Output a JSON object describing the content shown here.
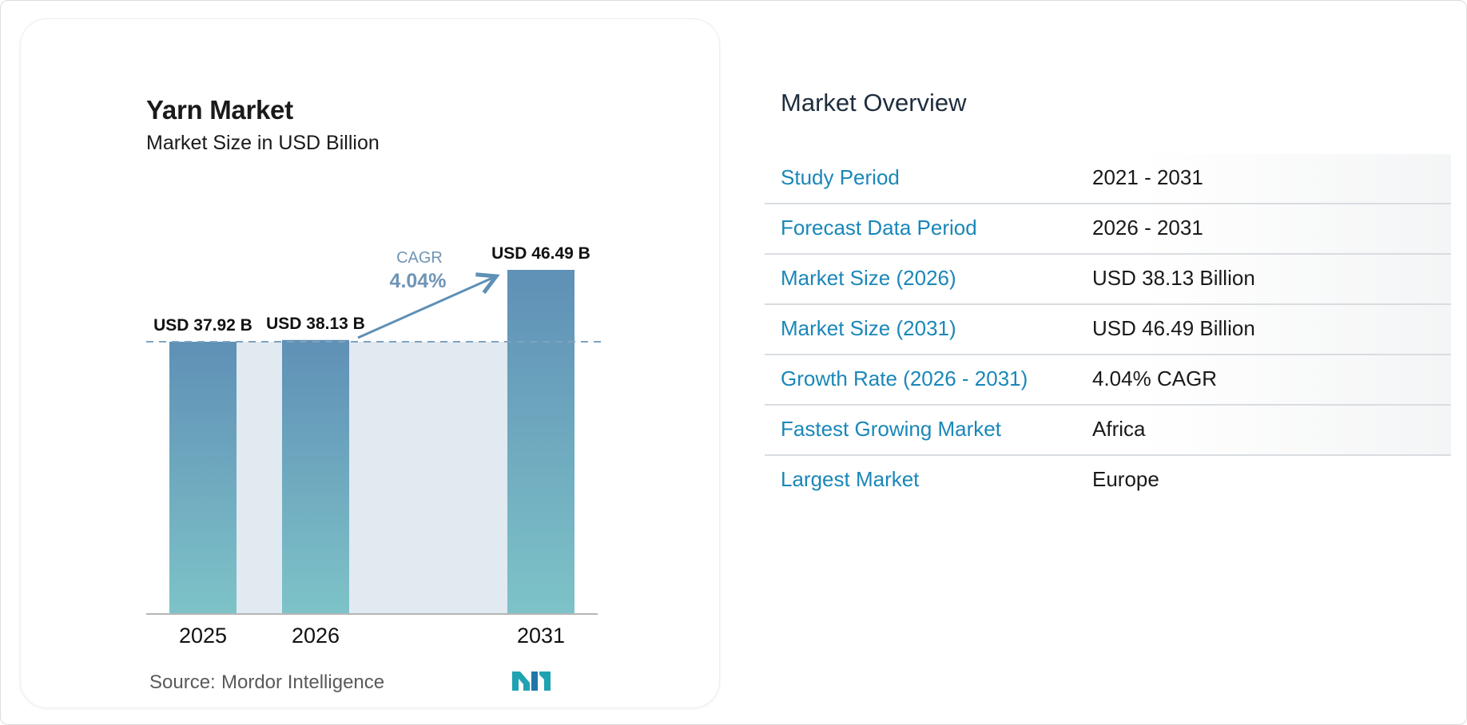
{
  "chart_data": {
    "type": "bar",
    "title": "Yarn Market",
    "subtitle": "Market Size in USD Billion",
    "categories": [
      "2025",
      "2026",
      "2031"
    ],
    "values": [
      37.92,
      38.13,
      46.49
    ],
    "value_labels": [
      "USD 37.92 B",
      "USD 38.13 B",
      "USD 46.49 B"
    ],
    "cagr_label": "CAGR",
    "cagr_value": "4.04%",
    "grid": false,
    "legend": "none",
    "colors": {
      "bar_top": "#5f90b6",
      "bar_bottom": "#7ec3c8",
      "band": "#e1e9f1",
      "arrow": "#5f90b6"
    }
  },
  "source": {
    "label": "Source:",
    "name": "Mordor Intelligence"
  },
  "overview": {
    "title": "Market Overview",
    "rows": [
      {
        "label": "Study Period",
        "value": "2021 - 2031"
      },
      {
        "label": "Forecast Data Period",
        "value": "2026 - 2031"
      },
      {
        "label": "Market Size (2026)",
        "value": "USD 38.13 Billion"
      },
      {
        "label": "Market Size (2031)",
        "value": "USD 46.49 Billion"
      },
      {
        "label": "Growth Rate (2026 - 2031)",
        "value": "4.04% CAGR"
      },
      {
        "label": "Fastest Growing Market",
        "value": "Africa"
      },
      {
        "label": "Largest Market",
        "value": "Europe"
      }
    ]
  }
}
